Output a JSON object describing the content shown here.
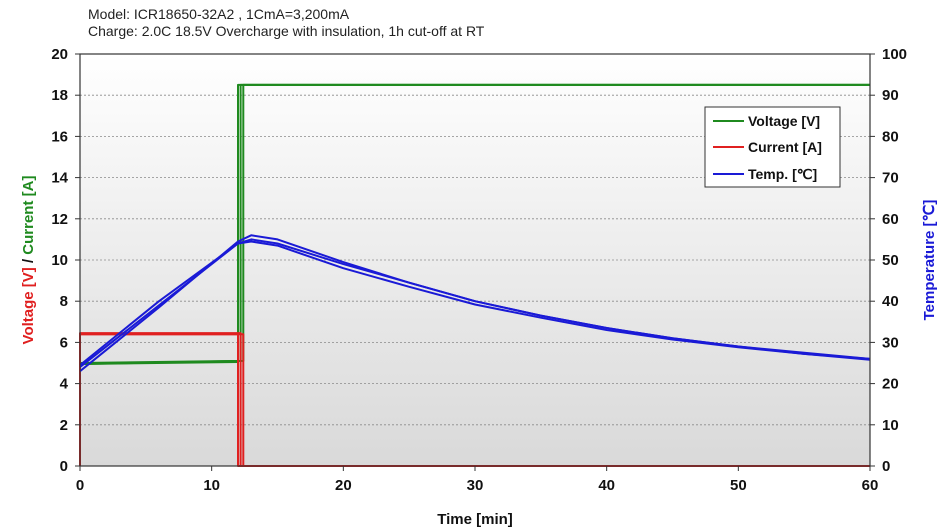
{
  "chart_data": {
    "type": "line",
    "title_lines": [
      "Model: ICR18650-32A2 , 1CmA=3,200mA",
      "Charge: 2.0C 18.5V Overcharge with insulation, 1h cut-off at RT"
    ],
    "xlabel": "Time [min]",
    "ylabel_left": {
      "parts": [
        {
          "text": "Voltage [V]",
          "color": "#e02020"
        },
        {
          "text": " / ",
          "color": "#111111"
        },
        {
          "text": "Current [A]",
          "color": "#1f8a1f"
        }
      ]
    },
    "ylabel_right": "Temperature [℃]",
    "xlim": [
      0,
      60
    ],
    "ylim_left": [
      0,
      20
    ],
    "ylim_right": [
      0,
      100
    ],
    "x_ticks": [
      "0",
      "10",
      "20",
      "30",
      "40",
      "50",
      "60"
    ],
    "y_left_ticks": [
      "0",
      "2",
      "4",
      "6",
      "8",
      "10",
      "12",
      "14",
      "16",
      "18",
      "20"
    ],
    "y_right_ticks": [
      "0",
      "10",
      "20",
      "30",
      "40",
      "50",
      "60",
      "70",
      "80",
      "90",
      "100"
    ],
    "grid": true,
    "legend_position": "top-right",
    "colors": {
      "voltage": "#1f8a1f",
      "current": "#e02020",
      "temperature": "#1a1ad6",
      "ylabel_right": "#1a1ad6"
    },
    "series": [
      {
        "name": "Voltage [V]",
        "axis": "left",
        "color": "#1f8a1f",
        "lines": [
          [
            [
              0,
              4.95
            ],
            [
              12.0,
              5.05
            ],
            [
              12.0,
              18.5
            ],
            [
              60,
              18.5
            ]
          ],
          [
            [
              0,
              5.0
            ],
            [
              12.2,
              5.1
            ],
            [
              12.2,
              18.5
            ],
            [
              60,
              18.5
            ]
          ],
          [
            [
              0,
              4.95
            ],
            [
              12.4,
              5.1
            ],
            [
              12.4,
              18.5
            ],
            [
              60,
              18.5
            ]
          ]
        ]
      },
      {
        "name": "Current [A]",
        "axis": "left",
        "color": "#e02020",
        "lines": [
          [
            [
              0,
              0
            ],
            [
              0,
              6.4
            ],
            [
              12.0,
              6.4
            ],
            [
              12.0,
              0
            ],
            [
              60,
              0
            ]
          ],
          [
            [
              0,
              0
            ],
            [
              0,
              6.45
            ],
            [
              12.2,
              6.45
            ],
            [
              12.2,
              0
            ],
            [
              60,
              0
            ]
          ],
          [
            [
              0,
              0
            ],
            [
              0,
              6.4
            ],
            [
              12.4,
              6.4
            ],
            [
              12.4,
              0
            ],
            [
              60,
              0
            ]
          ]
        ]
      },
      {
        "name": "Temp. [℃]",
        "axis": "right",
        "color": "#1a1ad6",
        "lines": [
          [
            [
              0,
              23
            ],
            [
              6,
              38.5
            ],
            [
              12,
              54.5
            ],
            [
              13,
              56
            ],
            [
              15,
              55
            ],
            [
              20,
              49.5
            ],
            [
              25,
              44.5
            ],
            [
              30,
              40
            ],
            [
              35,
              36.5
            ],
            [
              40,
              33.5
            ],
            [
              45,
              31
            ],
            [
              50,
              29
            ],
            [
              55,
              27.5
            ],
            [
              60,
              26
            ]
          ],
          [
            [
              0,
              24
            ],
            [
              6,
              39
            ],
            [
              12,
              54
            ],
            [
              13,
              55
            ],
            [
              15,
              54
            ],
            [
              20,
              49
            ],
            [
              25,
              44.5
            ],
            [
              30,
              40
            ],
            [
              35,
              36.5
            ],
            [
              40,
              33.5
            ],
            [
              45,
              31
            ],
            [
              50,
              29
            ],
            [
              55,
              27.2
            ],
            [
              60,
              26
            ]
          ],
          [
            [
              0,
              24.5
            ],
            [
              6,
              40
            ],
            [
              12,
              54
            ],
            [
              13,
              54.5
            ],
            [
              15,
              53.5
            ],
            [
              20,
              48
            ],
            [
              25,
              43.5
            ],
            [
              30,
              39.2
            ],
            [
              35,
              36
            ],
            [
              40,
              33
            ],
            [
              45,
              30.7
            ],
            [
              50,
              28.8
            ],
            [
              55,
              27.2
            ],
            [
              60,
              25.8
            ]
          ]
        ]
      }
    ]
  }
}
